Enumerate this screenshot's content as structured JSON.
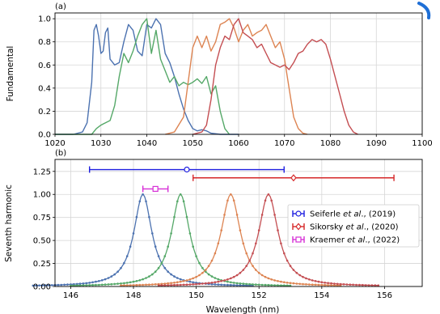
{
  "chart_data": [
    {
      "type": "line",
      "panel_label": "(a)",
      "xlabel": "",
      "ylabel": "Fundamental",
      "xlim": [
        1020,
        1100
      ],
      "ylim": [
        0,
        1.05
      ],
      "xticks": [
        1020,
        1030,
        1040,
        1050,
        1060,
        1070,
        1080,
        1090,
        1100
      ],
      "yticks": [
        0.0,
        0.2,
        0.4,
        0.6,
        0.8,
        1.0
      ],
      "ytick_labels": [
        "0.0",
        "0.2",
        "0.4",
        "0.6",
        "0.8",
        "1.0"
      ],
      "grid": true,
      "series": [
        {
          "color": "#4c72b0",
          "x": [
            1020,
            1024,
            1026,
            1027,
            1028,
            1028.5,
            1029,
            1029.5,
            1030,
            1030.5,
            1031,
            1031.5,
            1032,
            1033,
            1034,
            1035,
            1036,
            1037,
            1038,
            1039,
            1040,
            1041,
            1042,
            1043,
            1044,
            1045,
            1046,
            1047,
            1048,
            1049,
            1050,
            1051,
            1052,
            1053,
            1054,
            1056,
            1060
          ],
          "y": [
            0,
            0,
            0.02,
            0.1,
            0.45,
            0.9,
            0.95,
            0.85,
            0.7,
            0.72,
            0.88,
            0.92,
            0.65,
            0.6,
            0.62,
            0.8,
            0.95,
            0.9,
            0.72,
            0.68,
            0.95,
            0.92,
            1.0,
            0.95,
            0.7,
            0.62,
            0.5,
            0.35,
            0.22,
            0.12,
            0.05,
            0.03,
            0.04,
            0.03,
            0.01,
            0,
            0
          ]
        },
        {
          "color": "#55a868",
          "x": [
            1020,
            1028,
            1029,
            1030,
            1031,
            1032,
            1033,
            1034,
            1035,
            1036,
            1037,
            1038,
            1039,
            1040,
            1041,
            1042,
            1043,
            1044,
            1045,
            1046,
            1047,
            1048,
            1049,
            1050,
            1051,
            1052,
            1053,
            1054,
            1055,
            1056,
            1057,
            1058
          ],
          "y": [
            0,
            0,
            0.05,
            0.08,
            0.1,
            0.12,
            0.25,
            0.5,
            0.7,
            0.62,
            0.72,
            0.85,
            0.95,
            1.0,
            0.7,
            0.9,
            0.65,
            0.55,
            0.45,
            0.5,
            0.42,
            0.45,
            0.43,
            0.45,
            0.48,
            0.44,
            0.5,
            0.35,
            0.42,
            0.2,
            0.05,
            0
          ]
        },
        {
          "color": "#dd8452",
          "x": [
            1044,
            1046,
            1048,
            1049,
            1050,
            1051,
            1052,
            1053,
            1054,
            1055,
            1056,
            1057,
            1058,
            1059,
            1060,
            1061,
            1062,
            1063,
            1064,
            1065,
            1066,
            1067,
            1068,
            1069,
            1070,
            1071,
            1072,
            1073,
            1074,
            1075
          ],
          "y": [
            0,
            0.02,
            0.15,
            0.45,
            0.75,
            0.85,
            0.75,
            0.85,
            0.72,
            0.8,
            0.95,
            0.97,
            1.0,
            0.92,
            0.8,
            0.9,
            0.95,
            0.85,
            0.88,
            0.9,
            0.95,
            0.85,
            0.75,
            0.8,
            0.65,
            0.4,
            0.15,
            0.05,
            0.01,
            0
          ]
        },
        {
          "color": "#c44e52",
          "x": [
            1050,
            1052,
            1053,
            1054,
            1055,
            1056,
            1057,
            1058,
            1059,
            1060,
            1061,
            1062,
            1063,
            1064,
            1065,
            1066,
            1067,
            1068,
            1069,
            1070,
            1071,
            1072,
            1073,
            1074,
            1075,
            1076,
            1077,
            1078,
            1079,
            1080,
            1081,
            1082,
            1083,
            1084,
            1085,
            1086
          ],
          "y": [
            0,
            0.02,
            0.08,
            0.3,
            0.6,
            0.75,
            0.85,
            0.82,
            0.95,
            1.0,
            0.88,
            0.85,
            0.82,
            0.75,
            0.78,
            0.7,
            0.62,
            0.6,
            0.58,
            0.6,
            0.56,
            0.62,
            0.7,
            0.72,
            0.78,
            0.82,
            0.8,
            0.82,
            0.78,
            0.65,
            0.5,
            0.35,
            0.2,
            0.08,
            0.02,
            0
          ]
        }
      ]
    },
    {
      "type": "line",
      "panel_label": "(b)",
      "xlabel": "Wavelength (nm)",
      "ylabel": "Seventh harmonic",
      "xlim": [
        145.5,
        157.2
      ],
      "ylim": [
        0,
        1.38
      ],
      "xticks": [
        146,
        148,
        150,
        152,
        154,
        156
      ],
      "yticks": [
        0.0,
        0.25,
        0.5,
        0.75,
        1.0,
        1.25
      ],
      "ytick_labels": [
        "0.00",
        "0.25",
        "0.50",
        "0.75",
        "1.00",
        "1.25"
      ],
      "grid": true,
      "series": [
        {
          "color": "#4c72b0",
          "center": 148.3,
          "fwhm": 0.7
        },
        {
          "color": "#55a868",
          "center": 149.5,
          "fwhm": 0.7
        },
        {
          "color": "#dd8452",
          "center": 151.1,
          "fwhm": 0.75
        },
        {
          "color": "#c44e52",
          "center": 152.3,
          "fwhm": 0.75
        }
      ],
      "errorbars": [
        {
          "color": "#1f1fe0",
          "marker": "circle",
          "x": 149.7,
          "y": 1.27,
          "xmin": 146.6,
          "xmax": 152.8
        },
        {
          "color": "#d62728",
          "marker": "diamond",
          "x": 153.1,
          "y": 1.18,
          "xmin": 149.9,
          "xmax": 156.3
        },
        {
          "color": "#d62fd6",
          "marker": "square",
          "x": 148.7,
          "y": 1.06,
          "xmin": 148.3,
          "xmax": 149.1
        }
      ],
      "legend": {
        "position": "center-right",
        "entries": [
          {
            "prefix": "Seiferle ",
            "italic": "et al",
            "suffix": "., (2019)",
            "color": "#1f1fe0",
            "marker": "circle"
          },
          {
            "prefix": "Sikorsky ",
            "italic": "et al",
            "suffix": "., (2020)",
            "color": "#d62728",
            "marker": "diamond"
          },
          {
            "prefix": "Kraemer ",
            "italic": "et al",
            "suffix": "., (2022)",
            "color": "#d62fd6",
            "marker": "square"
          }
        ]
      }
    }
  ],
  "decoration": {
    "corner_arc_color": "#1f6fd6"
  }
}
